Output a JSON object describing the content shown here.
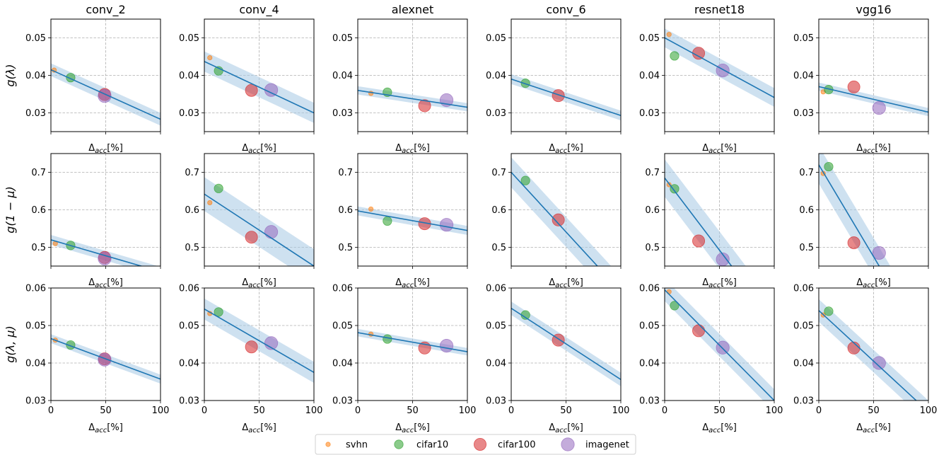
{
  "chart_data": {
    "type": "scatter",
    "x_range": [
      0,
      100
    ],
    "x_ticks": [
      0,
      50,
      100
    ],
    "x_label_base": "Δ",
    "x_label_sub": "acc",
    "x_label_suffix": "[%]",
    "columns": [
      "conv_2",
      "conv_4",
      "alexnet",
      "conv_6",
      "resnet18",
      "vgg16"
    ],
    "rows": [
      {
        "ylabel": "g(λ)",
        "ylim": [
          0.025,
          0.055
        ],
        "yticks": [
          0.03,
          0.04,
          0.05
        ],
        "ytick_labels": [
          "0.03",
          "0.04",
          "0.05"
        ]
      },
      {
        "ylabel": "g(1 − μ)",
        "ylim": [
          0.45,
          0.75
        ],
        "yticks": [
          0.5,
          0.6,
          0.7
        ],
        "ytick_labels": [
          "0.5",
          "0.6",
          "0.7"
        ]
      },
      {
        "ylabel": "g(λ, μ)",
        "ylim": [
          0.03,
          0.06
        ],
        "yticks": [
          0.03,
          0.04,
          0.05,
          0.06
        ],
        "ytick_labels": [
          "0.03",
          "0.04",
          "0.05",
          "0.06"
        ]
      }
    ],
    "legend": [
      {
        "name": "svhn",
        "color": "#ff7f0e"
      },
      {
        "name": "cifar10",
        "color": "#2ca02c"
      },
      {
        "name": "cifar100",
        "color": "#d62728"
      },
      {
        "name": "imagenet",
        "color": "#9467bd"
      }
    ],
    "fit_color": "#1f77b4",
    "band_color": "#a6c8e4",
    "panels": [
      [
        {
          "fit": [
            0.0415,
            0.0283
          ],
          "band": 0.0017,
          "points": [
            {
              "d": "svhn",
              "x": 3,
              "y": 0.0414
            },
            {
              "d": "cifar10",
              "x": 18,
              "y": 0.0394
            },
            {
              "d": "cifar100",
              "x": 49,
              "y": 0.0349
            },
            {
              "d": "imagenet",
              "x": 49,
              "y": 0.0345
            }
          ]
        },
        {
          "fit": [
            0.0437,
            0.03
          ],
          "band": 0.0027,
          "points": [
            {
              "d": "svhn",
              "x": 5,
              "y": 0.0447
            },
            {
              "d": "cifar10",
              "x": 13,
              "y": 0.0412
            },
            {
              "d": "cifar100",
              "x": 43,
              "y": 0.036
            },
            {
              "d": "imagenet",
              "x": 61,
              "y": 0.0361
            }
          ]
        },
        {
          "fit": [
            0.036,
            0.0315
          ],
          "band": 0.0011,
          "points": [
            {
              "d": "svhn",
              "x": 12,
              "y": 0.0352
            },
            {
              "d": "cifar10",
              "x": 27,
              "y": 0.0355
            },
            {
              "d": "cifar100",
              "x": 61,
              "y": 0.0319
            },
            {
              "d": "imagenet",
              "x": 81,
              "y": 0.0334
            }
          ]
        },
        {
          "fit": [
            0.039,
            0.0293
          ],
          "band": 0.0013,
          "points": [
            {
              "d": "cifar10",
              "x": 13,
              "y": 0.0379
            },
            {
              "d": "cifar100",
              "x": 43,
              "y": 0.0346
            }
          ]
        },
        {
          "fit": [
            0.05,
            0.0341
          ],
          "band": 0.0025,
          "points": [
            {
              "d": "svhn",
              "x": 4,
              "y": 0.0509
            },
            {
              "d": "cifar10",
              "x": 9,
              "y": 0.0452
            },
            {
              "d": "cifar100",
              "x": 31,
              "y": 0.0459
            },
            {
              "d": "imagenet",
              "x": 53,
              "y": 0.0413
            }
          ]
        },
        {
          "fit": [
            0.037,
            0.0302
          ],
          "band": 0.0011,
          "points": [
            {
              "d": "svhn",
              "x": 4,
              "y": 0.0356
            },
            {
              "d": "cifar10",
              "x": 9,
              "y": 0.0362
            },
            {
              "d": "cifar100",
              "x": 32,
              "y": 0.0369
            },
            {
              "d": "imagenet",
              "x": 55,
              "y": 0.0313
            }
          ]
        }
      ],
      [
        {
          "fit": [
            0.52,
            0.435
          ],
          "band": 0.013,
          "points": [
            {
              "d": "svhn",
              "x": 4,
              "y": 0.51
            },
            {
              "d": "cifar10",
              "x": 18,
              "y": 0.505
            },
            {
              "d": "cifar100",
              "x": 49,
              "y": 0.473
            },
            {
              "d": "imagenet",
              "x": 49,
              "y": 0.47
            }
          ]
        },
        {
          "fit": [
            0.642,
            0.45
          ],
          "band": 0.045,
          "points": [
            {
              "d": "svhn",
              "x": 5,
              "y": 0.619
            },
            {
              "d": "cifar10",
              "x": 13,
              "y": 0.657
            },
            {
              "d": "cifar100",
              "x": 43,
              "y": 0.527
            },
            {
              "d": "imagenet",
              "x": 61,
              "y": 0.541
            }
          ]
        },
        {
          "fit": [
            0.597,
            0.545
          ],
          "band": 0.012,
          "points": [
            {
              "d": "svhn",
              "x": 12,
              "y": 0.602
            },
            {
              "d": "cifar10",
              "x": 27,
              "y": 0.57
            },
            {
              "d": "cifar100",
              "x": 61,
              "y": 0.563
            },
            {
              "d": "imagenet",
              "x": 81,
              "y": 0.56
            }
          ]
        },
        {
          "fit": [
            0.7,
            0.382
          ],
          "band": 0.04,
          "points": [
            {
              "d": "cifar10",
              "x": 13,
              "y": 0.678
            },
            {
              "d": "cifar100",
              "x": 43,
              "y": 0.573
            }
          ]
        },
        {
          "fit": [
            0.685,
            0.3
          ],
          "band": 0.05,
          "points": [
            {
              "d": "svhn",
              "x": 4,
              "y": 0.667
            },
            {
              "d": "cifar10",
              "x": 9,
              "y": 0.656
            },
            {
              "d": "cifar100",
              "x": 31,
              "y": 0.517
            },
            {
              "d": "imagenet",
              "x": 53,
              "y": 0.468
            }
          ]
        },
        {
          "fit": [
            0.72,
            0.23
          ],
          "band": 0.05,
          "points": [
            {
              "d": "svhn",
              "x": 4,
              "y": 0.697
            },
            {
              "d": "cifar10",
              "x": 9,
              "y": 0.715
            },
            {
              "d": "cifar100",
              "x": 32,
              "y": 0.512
            },
            {
              "d": "imagenet",
              "x": 55,
              "y": 0.485
            }
          ]
        }
      ],
      [
        {
          "fit": [
            0.0465,
            0.0357
          ],
          "band": 0.0012,
          "points": [
            {
              "d": "svhn",
              "x": 4,
              "y": 0.0461
            },
            {
              "d": "cifar10",
              "x": 18,
              "y": 0.0448
            },
            {
              "d": "cifar100",
              "x": 49,
              "y": 0.0411
            },
            {
              "d": "imagenet",
              "x": 49,
              "y": 0.0409
            }
          ]
        },
        {
          "fit": [
            0.0544,
            0.0375
          ],
          "band": 0.0028,
          "points": [
            {
              "d": "svhn",
              "x": 5,
              "y": 0.0532
            },
            {
              "d": "cifar10",
              "x": 13,
              "y": 0.0536
            },
            {
              "d": "cifar100",
              "x": 43,
              "y": 0.0443
            },
            {
              "d": "imagenet",
              "x": 61,
              "y": 0.0453
            }
          ]
        },
        {
          "fit": [
            0.0481,
            0.043
          ],
          "band": 0.001,
          "points": [
            {
              "d": "svhn",
              "x": 12,
              "y": 0.0477
            },
            {
              "d": "cifar10",
              "x": 27,
              "y": 0.0464
            },
            {
              "d": "cifar100",
              "x": 61,
              "y": 0.044
            },
            {
              "d": "imagenet",
              "x": 81,
              "y": 0.0446
            }
          ]
        },
        {
          "fit": [
            0.0546,
            0.0356
          ],
          "band": 0.0018,
          "points": [
            {
              "d": "cifar10",
              "x": 13,
              "y": 0.0528
            },
            {
              "d": "cifar100",
              "x": 43,
              "y": 0.0461
            }
          ]
        },
        {
          "fit": [
            0.0595,
            0.03
          ],
          "band": 0.003,
          "points": [
            {
              "d": "svhn",
              "x": 4,
              "y": 0.059
            },
            {
              "d": "cifar10",
              "x": 9,
              "y": 0.0553
            },
            {
              "d": "cifar100",
              "x": 31,
              "y": 0.0486
            },
            {
              "d": "imagenet",
              "x": 53,
              "y": 0.0441
            }
          ]
        },
        {
          "fit": [
            0.054,
            0.027
          ],
          "band": 0.003,
          "points": [
            {
              "d": "svhn",
              "x": 4,
              "y": 0.0528
            },
            {
              "d": "cifar10",
              "x": 9,
              "y": 0.0538
            },
            {
              "d": "cifar100",
              "x": 32,
              "y": 0.044
            },
            {
              "d": "imagenet",
              "x": 55,
              "y": 0.04
            }
          ]
        }
      ]
    ]
  }
}
